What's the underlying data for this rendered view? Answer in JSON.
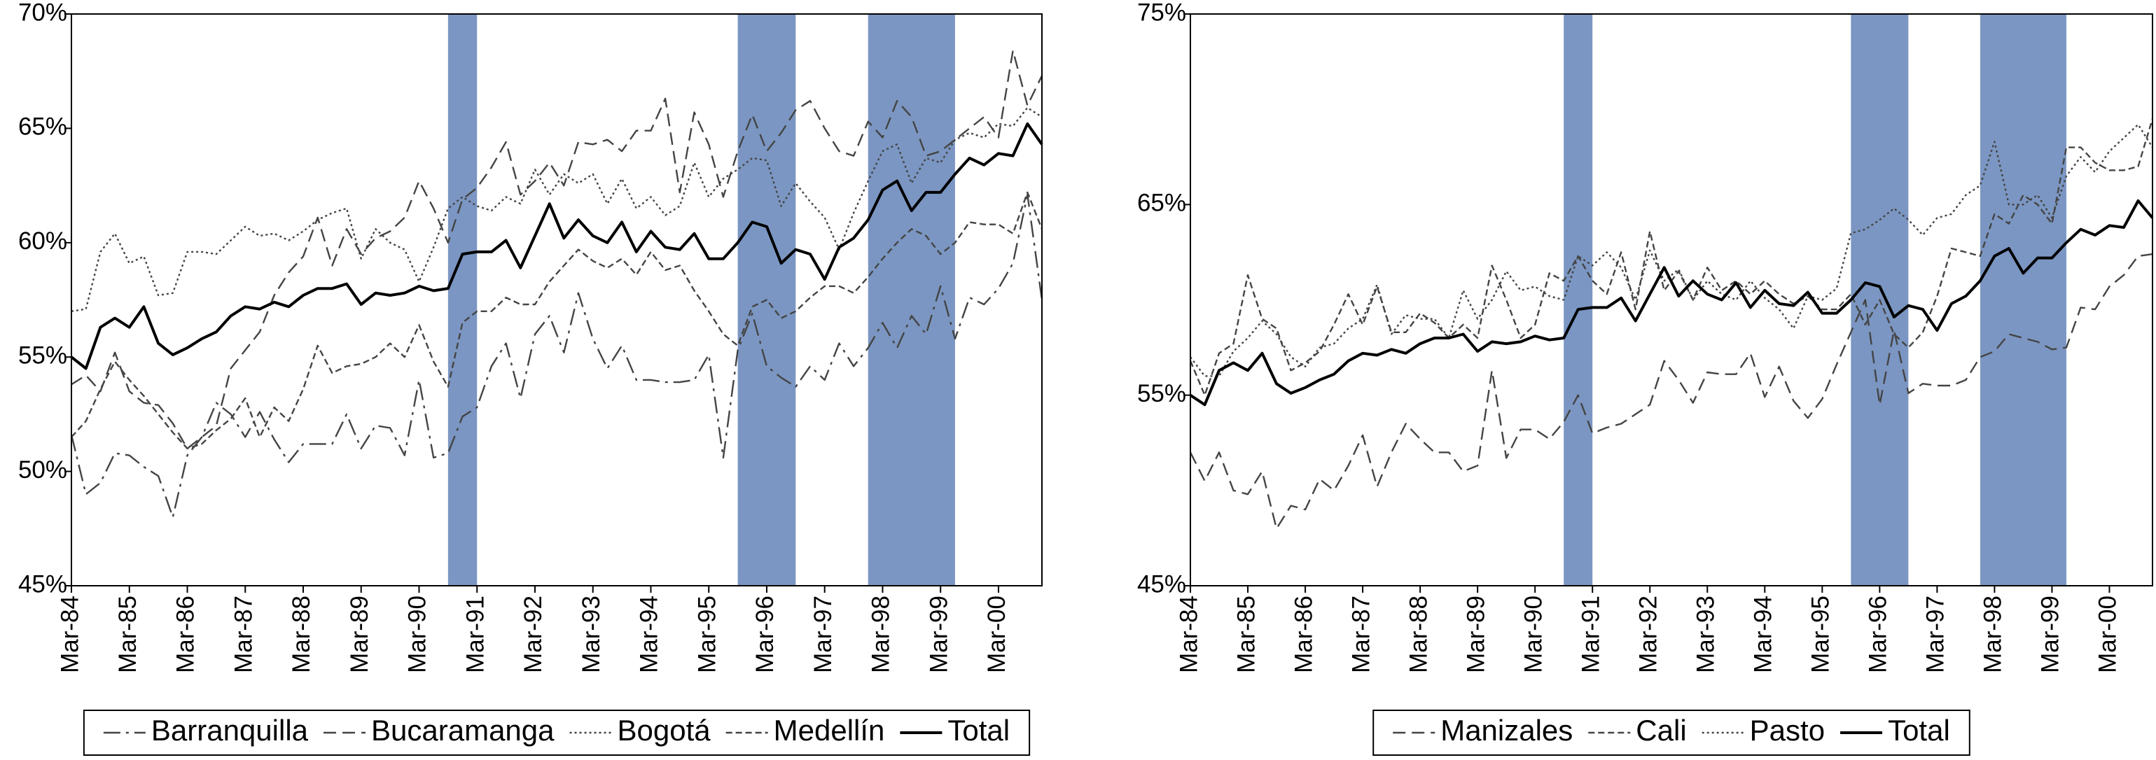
{
  "chart_data": [
    {
      "type": "line",
      "categories": [
        "Mar-84",
        null,
        null,
        null,
        "Mar-85",
        null,
        null,
        null,
        "Mar-86",
        null,
        null,
        null,
        "Mar-87",
        null,
        null,
        null,
        "Mar-88",
        null,
        null,
        null,
        "Mar-89",
        null,
        null,
        null,
        "Mar-90",
        null,
        null,
        null,
        "Mar-91",
        null,
        null,
        null,
        "Mar-92",
        null,
        null,
        null,
        "Mar-93",
        null,
        null,
        null,
        "Mar-94",
        null,
        null,
        null,
        "Mar-95",
        null,
        null,
        null,
        "Mar-96",
        null,
        null,
        null,
        "Mar-97",
        null,
        null,
        null,
        "Mar-98",
        null,
        null,
        null,
        "Mar-99",
        null,
        null,
        null,
        "Mar-00",
        null,
        null,
        null
      ],
      "series": [
        {
          "name": "Barranquilla",
          "color": "#444444",
          "style": "dashdot",
          "values": [
            51.6,
            49.0,
            49.5,
            50.8,
            50.7,
            50.2,
            49.8,
            48.0,
            50.7,
            51.5,
            53.0,
            52.5,
            51.5,
            52.6,
            51.4,
            50.4,
            51.2,
            51.2,
            51.2,
            52.5,
            51.0,
            52.0,
            51.9,
            50.7,
            54.0,
            50.6,
            50.8,
            52.4,
            52.8,
            54.6,
            55.6,
            53.2,
            56.0,
            56.8,
            55.2,
            57.8,
            55.8,
            54.5,
            55.5,
            54.0,
            54.0,
            53.9,
            53.9,
            54.0,
            55.1,
            50.6,
            55.3,
            56.9,
            54.6,
            54.1,
            53.7,
            54.6,
            54.0,
            55.6,
            54.6,
            55.4,
            56.5,
            55.4,
            56.8,
            56.0,
            58.1,
            55.8,
            57.6,
            57.3,
            58.0,
            59.1,
            62.1,
            57.5
          ]
        },
        {
          "name": "Bucaramanga",
          "color": "#444444",
          "style": "dashed",
          "values": [
            53.8,
            54.2,
            53.5,
            55.2,
            53.5,
            53.0,
            52.9,
            52.1,
            51.0,
            51.5,
            52.0,
            54.5,
            55.3,
            56.1,
            57.7,
            58.7,
            59.4,
            61.1,
            59.0,
            60.6,
            59.5,
            60.2,
            60.5,
            61.1,
            62.7,
            61.5,
            60.0,
            61.9,
            62.4,
            63.3,
            64.4,
            62.1,
            62.7,
            63.5,
            62.5,
            64.4,
            64.3,
            64.5,
            64.0,
            64.9,
            64.9,
            66.3,
            62.2,
            65.7,
            64.3,
            62.0,
            64.0,
            65.6,
            64.0,
            64.8,
            65.8,
            66.2,
            65.0,
            64.0,
            63.8,
            65.3,
            64.6,
            66.2,
            65.5,
            63.8,
            64.0,
            64.5,
            65.0,
            65.5,
            64.6,
            68.4,
            66.0,
            67.3
          ]
        },
        {
          "name": "Bogotá",
          "color": "#444444",
          "style": "dotted",
          "values": [
            57.0,
            57.1,
            59.6,
            60.4,
            59.1,
            59.4,
            57.7,
            57.8,
            59.6,
            59.6,
            59.5,
            60.1,
            60.7,
            60.3,
            60.4,
            60.1,
            60.5,
            61.0,
            61.3,
            61.5,
            59.3,
            60.6,
            60.0,
            59.7,
            58.3,
            59.8,
            61.5,
            62.0,
            61.6,
            61.4,
            62.0,
            61.7,
            63.2,
            62.1,
            63.0,
            62.6,
            63.0,
            61.7,
            62.8,
            61.5,
            62.0,
            61.2,
            61.6,
            63.5,
            62.0,
            62.8,
            63.2,
            63.7,
            63.6,
            61.6,
            62.6,
            61.8,
            61.1,
            59.7,
            61.3,
            62.7,
            64.0,
            64.3,
            62.6,
            63.7,
            63.5,
            64.5,
            64.8,
            64.6,
            65.2,
            65.1,
            65.9,
            65.5
          ]
        },
        {
          "name": "Medellín",
          "color": "#444444",
          "style": "finedash",
          "values": [
            51.5,
            52.2,
            53.6,
            54.8,
            54.0,
            53.3,
            52.5,
            51.7,
            51.0,
            51.2,
            51.8,
            52.3,
            53.2,
            51.5,
            52.8,
            52.2,
            53.6,
            55.5,
            54.3,
            54.6,
            54.7,
            55.0,
            55.6,
            55.0,
            56.4,
            54.8,
            53.7,
            56.5,
            57.0,
            57.0,
            57.6,
            57.3,
            57.3,
            58.3,
            59.0,
            59.7,
            59.2,
            58.9,
            59.3,
            58.6,
            59.6,
            58.8,
            59.0,
            57.9,
            57.0,
            56.0,
            55.5,
            57.2,
            57.5,
            56.7,
            57.0,
            57.6,
            58.1,
            58.1,
            57.8,
            58.5,
            59.3,
            60.0,
            60.6,
            60.3,
            59.5,
            60.0,
            60.9,
            60.8,
            60.8,
            60.4,
            62.2,
            60.6
          ]
        },
        {
          "name": "Total",
          "color": "#000000",
          "style": "solid",
          "values": [
            55.0,
            54.5,
            56.3,
            56.7,
            56.3,
            57.2,
            55.6,
            55.1,
            55.4,
            55.8,
            56.1,
            56.8,
            57.2,
            57.1,
            57.4,
            57.2,
            57.7,
            58.0,
            58.0,
            58.2,
            57.3,
            57.8,
            57.7,
            57.8,
            58.1,
            57.9,
            58.0,
            59.5,
            59.6,
            59.6,
            60.1,
            58.9,
            60.3,
            61.7,
            60.2,
            61.0,
            60.3,
            60.0,
            60.9,
            59.6,
            60.5,
            59.8,
            59.7,
            60.4,
            59.3,
            59.3,
            60.0,
            60.9,
            60.7,
            59.1,
            59.7,
            59.5,
            58.4,
            59.8,
            60.2,
            61.0,
            62.3,
            62.7,
            61.4,
            62.2,
            62.2,
            63.0,
            63.7,
            63.4,
            63.9,
            63.8,
            65.2,
            64.3
          ]
        }
      ],
      "ylim": [
        45,
        70
      ],
      "yticks": [
        {
          "value": 45,
          "label": "45%"
        },
        {
          "value": 50,
          "label": "50%"
        },
        {
          "value": 55,
          "label": "55%"
        },
        {
          "value": 60,
          "label": "60%"
        },
        {
          "value": 65,
          "label": "65%"
        },
        {
          "value": 70,
          "label": "70%"
        }
      ],
      "shaded_periods": [
        {
          "from": 26,
          "to": 28
        },
        {
          "from": 46,
          "to": 50
        },
        {
          "from": 55,
          "to": 61
        }
      ],
      "band_color": "#7b96c2",
      "legend": "bottom"
    },
    {
      "type": "line",
      "categories": [
        "Mar-84",
        null,
        null,
        null,
        "Mar-85",
        null,
        null,
        null,
        "Mar-86",
        null,
        null,
        null,
        "Mar-87",
        null,
        null,
        null,
        "Mar-88",
        null,
        null,
        null,
        "Mar-89",
        null,
        null,
        null,
        "Mar-90",
        null,
        null,
        null,
        "Mar-91",
        null,
        null,
        null,
        "Mar-92",
        null,
        null,
        null,
        "Mar-93",
        null,
        null,
        null,
        "Mar-94",
        null,
        null,
        null,
        "Mar-95",
        null,
        null,
        null,
        "Mar-96",
        null,
        null,
        null,
        "Mar-97",
        null,
        null,
        null,
        "Mar-98",
        null,
        null,
        null,
        "Mar-99",
        null,
        null,
        null,
        "Mar-00",
        null,
        null,
        null
      ],
      "series": [
        {
          "name": "Manizales",
          "color": "#444444",
          "style": "dashed",
          "values": [
            52.0,
            50.5,
            52.0,
            50.0,
            49.8,
            51.0,
            48.0,
            49.2,
            49.0,
            50.6,
            50.0,
            51.3,
            52.9,
            50.2,
            52.0,
            53.5,
            52.7,
            52.0,
            52.0,
            51.0,
            51.3,
            56.3,
            51.7,
            53.2,
            53.2,
            52.7,
            53.6,
            55.0,
            53.0,
            53.3,
            53.5,
            54.0,
            54.5,
            56.8,
            55.8,
            54.6,
            56.2,
            56.1,
            56.1,
            57.2,
            54.9,
            56.5,
            54.7,
            53.8,
            54.8,
            56.6,
            58.3,
            60.0,
            54.5,
            58.4,
            55.1,
            55.6,
            55.5,
            55.5,
            55.8,
            57.0,
            57.3,
            58.2,
            58.0,
            57.8,
            57.4,
            57.5,
            59.6,
            59.5,
            60.7,
            61.3,
            62.3,
            62.4
          ]
        },
        {
          "name": "Cali",
          "color": "#444444",
          "style": "finedash",
          "values": [
            56.8,
            55.0,
            57.2,
            57.7,
            61.3,
            59.0,
            58.5,
            56.3,
            56.7,
            57.3,
            58.7,
            60.3,
            58.7,
            60.7,
            58.3,
            58.3,
            59.3,
            58.8,
            58.0,
            58.7,
            58.0,
            61.8,
            60.0,
            58.0,
            58.7,
            61.4,
            61.0,
            62.3,
            61.0,
            60.3,
            62.5,
            59.5,
            63.6,
            60.5,
            61.5,
            60.0,
            61.7,
            60.5,
            61.0,
            60.3,
            61.0,
            60.3,
            59.8,
            60.2,
            59.5,
            59.5,
            60.3,
            58.7,
            60.0,
            58.2,
            57.5,
            58.3,
            60.2,
            62.7,
            62.5,
            62.3,
            64.5,
            64.0,
            65.5,
            65.0,
            64.0,
            68.0,
            68.0,
            67.2,
            66.8,
            66.8,
            67.0,
            69.5
          ]
        },
        {
          "name": "Pasto",
          "color": "#444444",
          "style": "dotted",
          "values": [
            57.0,
            56.0,
            56.0,
            57.3,
            58.0,
            58.9,
            58.2,
            57.0,
            56.5,
            57.5,
            57.7,
            58.5,
            59.0,
            60.8,
            58.2,
            59.2,
            59.0,
            59.0,
            58.0,
            60.5,
            59.0,
            60.0,
            61.5,
            60.5,
            60.7,
            60.2,
            60.0,
            62.3,
            61.8,
            62.5,
            61.7,
            60.0,
            62.6,
            61.0,
            61.6,
            60.0,
            61.0,
            60.3,
            60.0,
            61.0,
            60.1,
            59.5,
            58.5,
            60.2,
            60.0,
            60.6,
            63.5,
            63.7,
            64.2,
            64.8,
            64.2,
            63.4,
            64.3,
            64.5,
            65.5,
            66.0,
            68.3,
            65.0,
            65.0,
            65.5,
            64.3,
            66.5,
            67.5,
            66.7,
            67.8,
            68.5,
            69.2,
            68.0
          ]
        },
        {
          "name": "Total",
          "color": "#000000",
          "style": "solid",
          "values": [
            55.0,
            54.5,
            56.3,
            56.7,
            56.3,
            57.2,
            55.6,
            55.1,
            55.4,
            55.8,
            56.1,
            56.8,
            57.2,
            57.1,
            57.4,
            57.2,
            57.7,
            58.0,
            58.0,
            58.2,
            57.3,
            57.8,
            57.7,
            57.8,
            58.1,
            57.9,
            58.0,
            59.5,
            59.6,
            59.6,
            60.1,
            58.9,
            60.3,
            61.7,
            60.2,
            61.0,
            60.3,
            60.0,
            60.9,
            59.6,
            60.5,
            59.8,
            59.7,
            60.4,
            59.3,
            59.3,
            60.0,
            60.9,
            60.7,
            59.1,
            59.7,
            59.5,
            58.4,
            59.8,
            60.2,
            61.0,
            62.3,
            62.7,
            61.4,
            62.2,
            62.2,
            63.0,
            63.7,
            63.4,
            63.9,
            63.8,
            65.2,
            64.3
          ]
        }
      ],
      "ylim": [
        45,
        75
      ],
      "yticks": [
        {
          "value": 45,
          "label": "45%"
        },
        {
          "value": 55,
          "label": "55%"
        },
        {
          "value": 65,
          "label": "65%"
        },
        {
          "value": 75,
          "label": "75%"
        }
      ],
      "shaded_periods": [
        {
          "from": 26,
          "to": 28
        },
        {
          "from": 46,
          "to": 50
        },
        {
          "from": 55,
          "to": 61
        }
      ],
      "band_color": "#7b96c2",
      "legend": "bottom"
    }
  ]
}
